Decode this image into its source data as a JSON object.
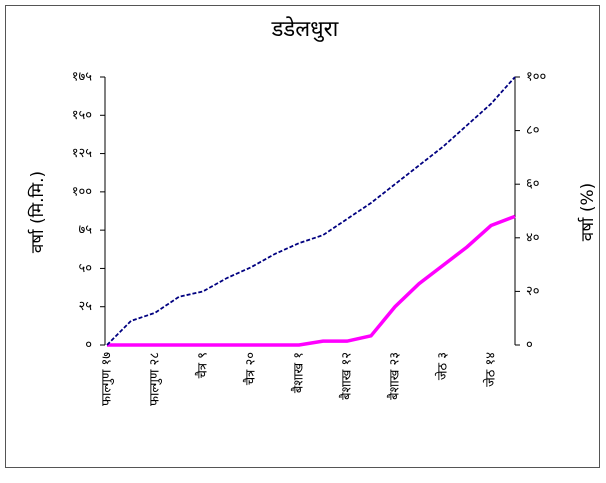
{
  "chart_data": {
    "type": "line",
    "title": "डडेलधुरा",
    "ylabel": "वर्षा (मि.मि.)",
    "y2label": "वर्षा (%)",
    "categories": [
      "फाल्गुण १७",
      null,
      "फाल्गुण २८",
      null,
      "चैत्र ९",
      null,
      "चैत्र २०",
      null,
      "बैशाख १",
      null,
      "बैशाख १२",
      null,
      "बैशाख २३",
      null,
      "जेठ ३",
      null,
      "जेठ १४",
      null
    ],
    "series": [
      {
        "color": "#ff00ff",
        "dash": false,
        "axis": "y",
        "values": [
          0,
          0,
          0,
          0,
          0,
          0,
          0,
          0,
          0,
          2.5,
          2.5,
          6,
          25,
          40,
          52,
          64,
          78,
          84
        ]
      },
      {
        "color": "#000080",
        "dash": true,
        "axis": "y2",
        "values": [
          0,
          9,
          12,
          18,
          20,
          25,
          29,
          34,
          38,
          41,
          47,
          53,
          60,
          67,
          74,
          82,
          90,
          100
        ]
      }
    ],
    "ylim": [
      0,
      175
    ],
    "yticks": [
      {
        "value": 0,
        "label": "०"
      },
      {
        "value": 25,
        "label": "२५"
      },
      {
        "value": 50,
        "label": "५०"
      },
      {
        "value": 75,
        "label": "७५"
      },
      {
        "value": 100,
        "label": "१००"
      },
      {
        "value": 125,
        "label": "१२५"
      },
      {
        "value": 150,
        "label": "१५०"
      },
      {
        "value": 175,
        "label": "१७५"
      }
    ],
    "y2lim": [
      0,
      100
    ],
    "y2ticks": [
      {
        "value": 0,
        "label": "०"
      },
      {
        "value": 20,
        "label": "२०"
      },
      {
        "value": 40,
        "label": "४०"
      },
      {
        "value": 60,
        "label": "६०"
      },
      {
        "value": 80,
        "label": "८०"
      },
      {
        "value": 100,
        "label": "१००"
      }
    ]
  }
}
